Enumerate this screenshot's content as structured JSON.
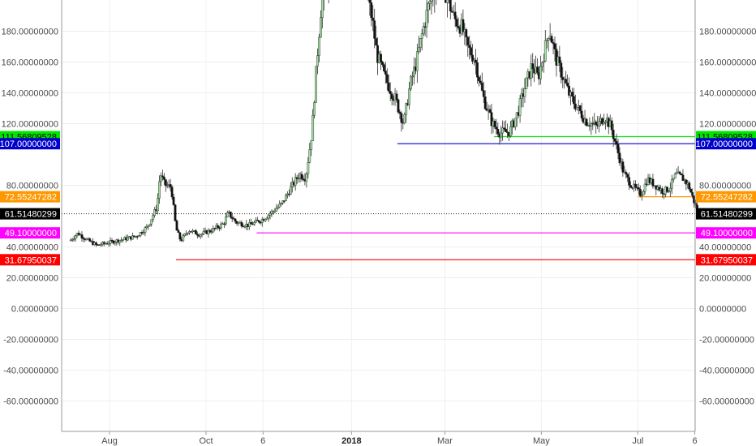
{
  "chart_data": {
    "type": "candlestick",
    "y_ticks": [
      {
        "value": 180,
        "label": "180.00000000"
      },
      {
        "value": 160,
        "label": "160.00000000"
      },
      {
        "value": 140,
        "label": "140.00000000"
      },
      {
        "value": 120,
        "label": "120.00000000"
      },
      {
        "value": 80,
        "label": "80.00000000"
      },
      {
        "value": 40,
        "label": "40.00000000"
      },
      {
        "value": 20,
        "label": "20.00000000"
      },
      {
        "value": 0,
        "label": "0.00000000"
      },
      {
        "value": -20,
        "label": "-20.00000000"
      },
      {
        "value": -40,
        "label": "-40.00000000"
      },
      {
        "value": -60,
        "label": "-60.00000000"
      }
    ],
    "x_ticks": [
      {
        "date": "2017-08-01",
        "label": "Aug",
        "bold": false
      },
      {
        "date": "2017-10-01",
        "label": "Oct",
        "bold": false
      },
      {
        "date": "2017-11-06",
        "label": "6",
        "bold": false
      },
      {
        "date": "2018-01-01",
        "label": "2018",
        "bold": true
      },
      {
        "date": "2018-03-01",
        "label": "Mar",
        "bold": false
      },
      {
        "date": "2018-05-01",
        "label": "May",
        "bold": false
      },
      {
        "date": "2018-07-01",
        "label": "Jul",
        "bold": false
      },
      {
        "date": "2018-08-06",
        "label": "6",
        "bold": false
      }
    ],
    "horizontal_levels": [
      {
        "value": 111.56809528,
        "label": "111.56809528",
        "color": "#00e600",
        "text_color": "#000000",
        "start_date": "2018-04-01",
        "show_left_tag": true
      },
      {
        "value": 107.0,
        "label": "107.00000000",
        "color": "#0000cc",
        "text_color": "#ffffff",
        "start_date": "2018-01-30",
        "show_left_tag": true
      },
      {
        "value": 72.55247282,
        "label": "72.55247282",
        "color": "#ff9800",
        "text_color": "#ffffff",
        "start_date": "2018-07-01",
        "show_left_tag": true
      },
      {
        "value": 49.1,
        "label": "49.10000000",
        "color": "#ff00ff",
        "text_color": "#ffffff",
        "start_date": "2017-11-02",
        "show_left_tag": true
      },
      {
        "value": 31.6795003,
        "label": "31.67950037",
        "color": "#ff0000",
        "text_color": "#ffffff",
        "start_date": "2017-09-12",
        "show_left_tag": true
      }
    ],
    "last_price": {
      "value": 61.5148029,
      "label": "61.51480299",
      "color": "#000000"
    },
    "price_path": [
      [
        "2017-07-07",
        44
      ],
      [
        "2017-07-12",
        49
      ],
      [
        "2017-07-17",
        45
      ],
      [
        "2017-07-24",
        41
      ],
      [
        "2017-08-01",
        43
      ],
      [
        "2017-08-10",
        45
      ],
      [
        "2017-08-18",
        47
      ],
      [
        "2017-08-25",
        53
      ],
      [
        "2017-08-31",
        66
      ],
      [
        "2017-09-02",
        88
      ],
      [
        "2017-09-05",
        80
      ],
      [
        "2017-09-09",
        79
      ],
      [
        "2017-09-12",
        52
      ],
      [
        "2017-09-15",
        44
      ],
      [
        "2017-09-20",
        51
      ],
      [
        "2017-09-27",
        48
      ],
      [
        "2017-10-05",
        51
      ],
      [
        "2017-10-12",
        55
      ],
      [
        "2017-10-15",
        62
      ],
      [
        "2017-10-20",
        56
      ],
      [
        "2017-10-28",
        54
      ],
      [
        "2017-11-06",
        58
      ],
      [
        "2017-11-12",
        63
      ],
      [
        "2017-11-18",
        68
      ],
      [
        "2017-11-24",
        79
      ],
      [
        "2017-11-29",
        87
      ],
      [
        "2017-12-03",
        85
      ],
      [
        "2017-12-07",
        115
      ],
      [
        "2017-12-10",
        160
      ],
      [
        "2017-12-13",
        200
      ],
      [
        "2017-12-20",
        222
      ],
      [
        "2017-12-30",
        218
      ],
      [
        "2018-01-09",
        212
      ],
      [
        "2018-01-14",
        188
      ],
      [
        "2018-01-17",
        165
      ],
      [
        "2018-01-22",
        150
      ],
      [
        "2018-01-29",
        135
      ],
      [
        "2018-02-03",
        120
      ],
      [
        "2018-02-07",
        145
      ],
      [
        "2018-02-11",
        160
      ],
      [
        "2018-02-15",
        180
      ],
      [
        "2018-02-19",
        198
      ],
      [
        "2018-02-26",
        215
      ],
      [
        "2018-03-03",
        200
      ],
      [
        "2018-03-07",
        188
      ],
      [
        "2018-03-12",
        182
      ],
      [
        "2018-03-15",
        170
      ],
      [
        "2018-03-20",
        162
      ],
      [
        "2018-03-25",
        138
      ],
      [
        "2018-03-31",
        120
      ],
      [
        "2018-04-05",
        114
      ],
      [
        "2018-04-11",
        115
      ],
      [
        "2018-04-16",
        127
      ],
      [
        "2018-04-21",
        145
      ],
      [
        "2018-04-25",
        158
      ],
      [
        "2018-04-29",
        150
      ],
      [
        "2018-05-04",
        172
      ],
      [
        "2018-05-06",
        182
      ],
      [
        "2018-05-10",
        163
      ],
      [
        "2018-05-14",
        152
      ],
      [
        "2018-05-19",
        138
      ],
      [
        "2018-05-24",
        130
      ],
      [
        "2018-05-29",
        122
      ],
      [
        "2018-06-05",
        118
      ],
      [
        "2018-06-10",
        125
      ],
      [
        "2018-06-14",
        118
      ],
      [
        "2018-06-18",
        103
      ],
      [
        "2018-06-22",
        88
      ],
      [
        "2018-06-27",
        80
      ],
      [
        "2018-07-03",
        74
      ],
      [
        "2018-07-07",
        84
      ],
      [
        "2018-07-12",
        80
      ],
      [
        "2018-07-17",
        76
      ],
      [
        "2018-07-21",
        78
      ],
      [
        "2018-07-25",
        87
      ],
      [
        "2018-07-29",
        85
      ],
      [
        "2018-08-02",
        80
      ],
      [
        "2018-08-05",
        71
      ],
      [
        "2018-08-08",
        62
      ]
    ],
    "candle_colors": {
      "up": "#a5e0a5",
      "down": "#111111",
      "wick": "#333333"
    }
  }
}
